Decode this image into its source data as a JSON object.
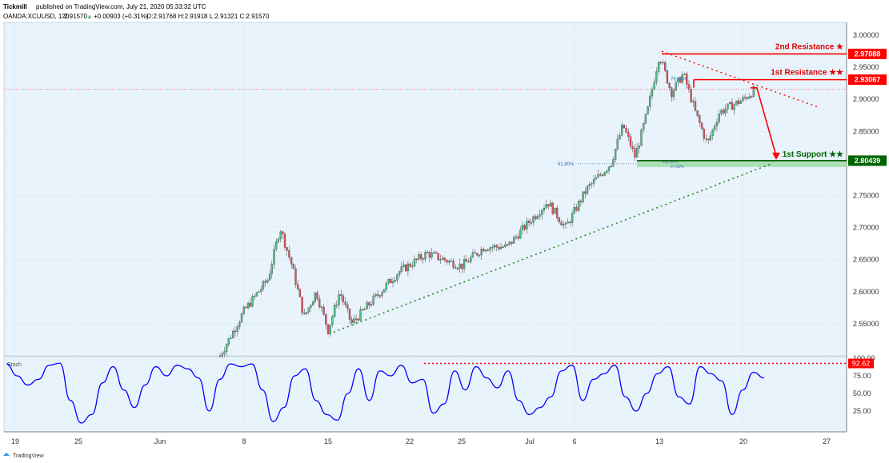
{
  "header": {
    "author": "Tickmill",
    "published": "published on TradingView.com, July 21, 2020 05:33:32 UTC",
    "symbol": "OANDA:XCUUSD, 120",
    "last": "2.91570",
    "change": "+0.00903 (+0.31%)",
    "ohlc": "O:2.91768 H:2.91918 L:2.91321 C:2.91570"
  },
  "footer": {
    "brand": "TradingView"
  },
  "colors": {
    "up": "#53b987",
    "down": "#eb4d5c",
    "resistance": "#ff0000",
    "support": "#006400",
    "stoch": "#0000ff",
    "trend": "#228b22"
  },
  "chart_data": [
    {
      "type": "candlestick",
      "title": "OANDA:XCUUSD, 120",
      "ylim": [
        2.5,
        3.02
      ],
      "y_ticks": [
        "3.00000",
        "2.95000",
        "2.90000",
        "2.85000",
        "2.80000",
        "2.75000",
        "2.70000",
        "2.65000",
        "2.60000",
        "2.55000"
      ],
      "x_ticks": [
        "19",
        "25",
        "Jun",
        "8",
        "15",
        "22",
        "25",
        "Jul",
        "6",
        "13",
        "20",
        "27"
      ],
      "current_price": "2.91570",
      "levels": [
        {
          "name": "2nd Resistance ★",
          "value": 2.97088,
          "label": "2.97088"
        },
        {
          "name": "1st Resistance ★★",
          "value": 2.93067,
          "label": "2.93067"
        },
        {
          "name": "1st Support ★★",
          "value": 2.80439,
          "label": "2.80439"
        }
      ],
      "fib_labels": [
        "78.60%",
        "61.80%",
        "161.80%",
        "27.00%"
      ],
      "price_path": [
        {
          "x": "Jun 6",
          "y": 2.5
        },
        {
          "x": "Jun 8",
          "y": 2.57
        },
        {
          "x": "Jun 10",
          "y": 2.62
        },
        {
          "x": "Jun 11",
          "y": 2.7
        },
        {
          "x": "Jun 12",
          "y": 2.64
        },
        {
          "x": "Jun 13",
          "y": 2.56
        },
        {
          "x": "Jun 14",
          "y": 2.6
        },
        {
          "x": "Jun 15",
          "y": 2.54
        },
        {
          "x": "Jun 16",
          "y": 2.6
        },
        {
          "x": "Jun 17",
          "y": 2.55
        },
        {
          "x": "Jun 19",
          "y": 2.59
        },
        {
          "x": "Jun 21",
          "y": 2.63
        },
        {
          "x": "Jun 23",
          "y": 2.66
        },
        {
          "x": "Jun 25",
          "y": 2.64
        },
        {
          "x": "Jun 27",
          "y": 2.67
        },
        {
          "x": "Jun 29",
          "y": 2.67
        },
        {
          "x": "Jul 1",
          "y": 2.71
        },
        {
          "x": "Jul 3",
          "y": 2.74
        },
        {
          "x": "Jul 5",
          "y": 2.7
        },
        {
          "x": "Jul 7",
          "y": 2.76
        },
        {
          "x": "Jul 9",
          "y": 2.8
        },
        {
          "x": "Jul 10",
          "y": 2.86
        },
        {
          "x": "Jul 11",
          "y": 2.81
        },
        {
          "x": "Jul 12",
          "y": 2.88
        },
        {
          "x": "Jul 13",
          "y": 2.97
        },
        {
          "x": "Jul 14",
          "y": 2.91
        },
        {
          "x": "Jul 15",
          "y": 2.94
        },
        {
          "x": "Jul 16",
          "y": 2.88
        },
        {
          "x": "Jul 17",
          "y": 2.83
        },
        {
          "x": "Jul 18",
          "y": 2.88
        },
        {
          "x": "Jul 20",
          "y": 2.9
        },
        {
          "x": "Jul 21",
          "y": 2.9157
        }
      ]
    },
    {
      "type": "line",
      "title": "Stoch",
      "ylim": [
        0,
        100
      ],
      "y_ticks": [
        "100.00",
        "75.00",
        "50.00",
        "25.00"
      ],
      "level": {
        "value": 92.62,
        "label": "92.62"
      },
      "values": [
        92,
        75,
        62,
        70,
        90,
        93,
        40,
        8,
        20,
        65,
        88,
        55,
        30,
        62,
        88,
        75,
        90,
        85,
        72,
        25,
        70,
        92,
        88,
        92,
        55,
        10,
        30,
        75,
        85,
        40,
        20,
        12,
        50,
        85,
        40,
        82,
        75,
        90,
        65,
        70,
        22,
        35,
        82,
        55,
        88,
        72,
        58,
        82,
        40,
        20,
        30,
        45,
        82,
        90,
        40,
        70,
        78,
        90,
        45,
        25,
        50,
        78,
        88,
        45,
        35,
        88,
        78,
        68,
        20,
        55,
        80,
        72
      ]
    }
  ]
}
